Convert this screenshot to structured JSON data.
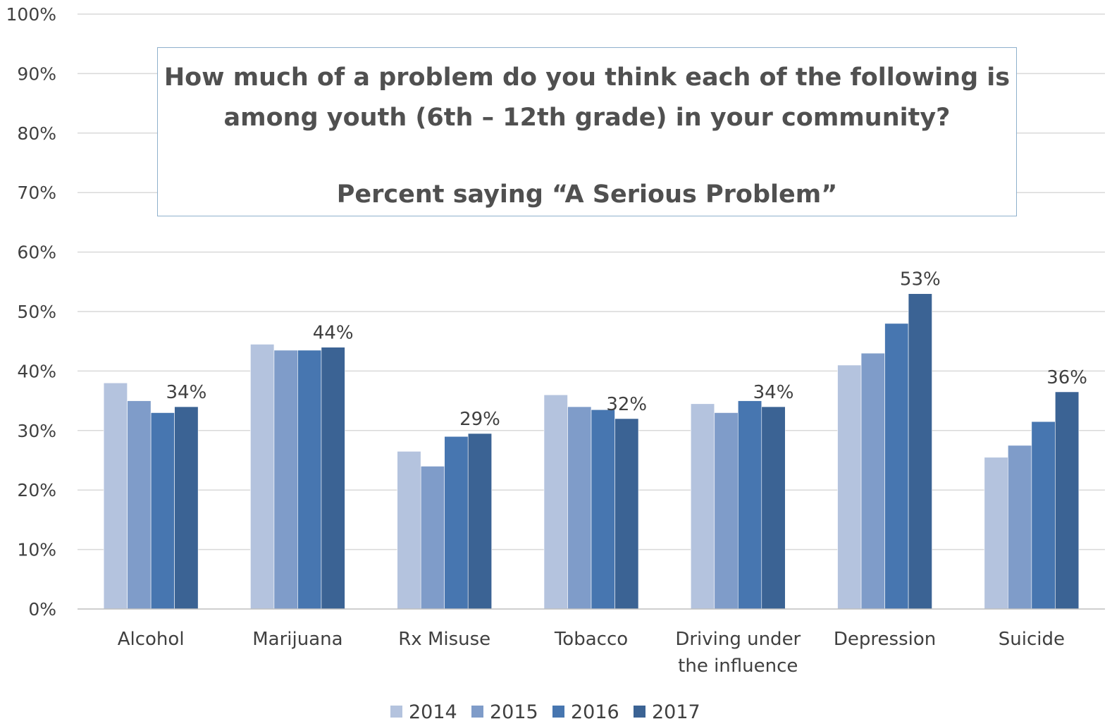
{
  "chart_data": {
    "type": "bar",
    "title": "How much of a problem do you think each of the following is among youth (6th – 12th grade) in your community?",
    "subtitle": "Percent saying “A Serious Problem”",
    "categories": [
      [
        "Alcohol"
      ],
      [
        "Marijuana"
      ],
      [
        "Rx Misuse"
      ],
      [
        "Tobacco"
      ],
      [
        "Driving under",
        "the influence"
      ],
      [
        "Depression"
      ],
      [
        "Suicide"
      ]
    ],
    "series": [
      {
        "name": "2014",
        "color": "#b4c3de",
        "values": [
          38,
          44.5,
          26.5,
          36,
          34.5,
          41,
          25.5
        ]
      },
      {
        "name": "2015",
        "color": "#7f9cc9",
        "values": [
          35,
          43.5,
          24,
          34,
          33,
          43,
          27.5
        ]
      },
      {
        "name": "2016",
        "color": "#4776b0",
        "values": [
          33,
          43.5,
          29,
          33.5,
          35,
          48,
          31.5
        ]
      },
      {
        "name": "2017",
        "color": "#3b6394",
        "values": [
          34,
          44,
          29.5,
          32,
          34,
          53,
          36.5
        ]
      }
    ],
    "data_labels": [
      {
        "category_index": 0,
        "series_index": 3,
        "text": "34%"
      },
      {
        "category_index": 1,
        "series_index": 3,
        "text": "44%"
      },
      {
        "category_index": 2,
        "series_index": 3,
        "text": "29%"
      },
      {
        "category_index": 3,
        "series_index": 3,
        "text": "32%"
      },
      {
        "category_index": 4,
        "series_index": 3,
        "text": "34%"
      },
      {
        "category_index": 5,
        "series_index": 3,
        "text": "53%"
      },
      {
        "category_index": 6,
        "series_index": 3,
        "text": "36%"
      }
    ],
    "ylim": [
      0,
      100
    ],
    "yticks": [
      "0%",
      "10%",
      "20%",
      "30%",
      "40%",
      "50%",
      "60%",
      "70%",
      "80%",
      "90%",
      "100%"
    ],
    "grid": true,
    "legend_position": "bottom"
  }
}
